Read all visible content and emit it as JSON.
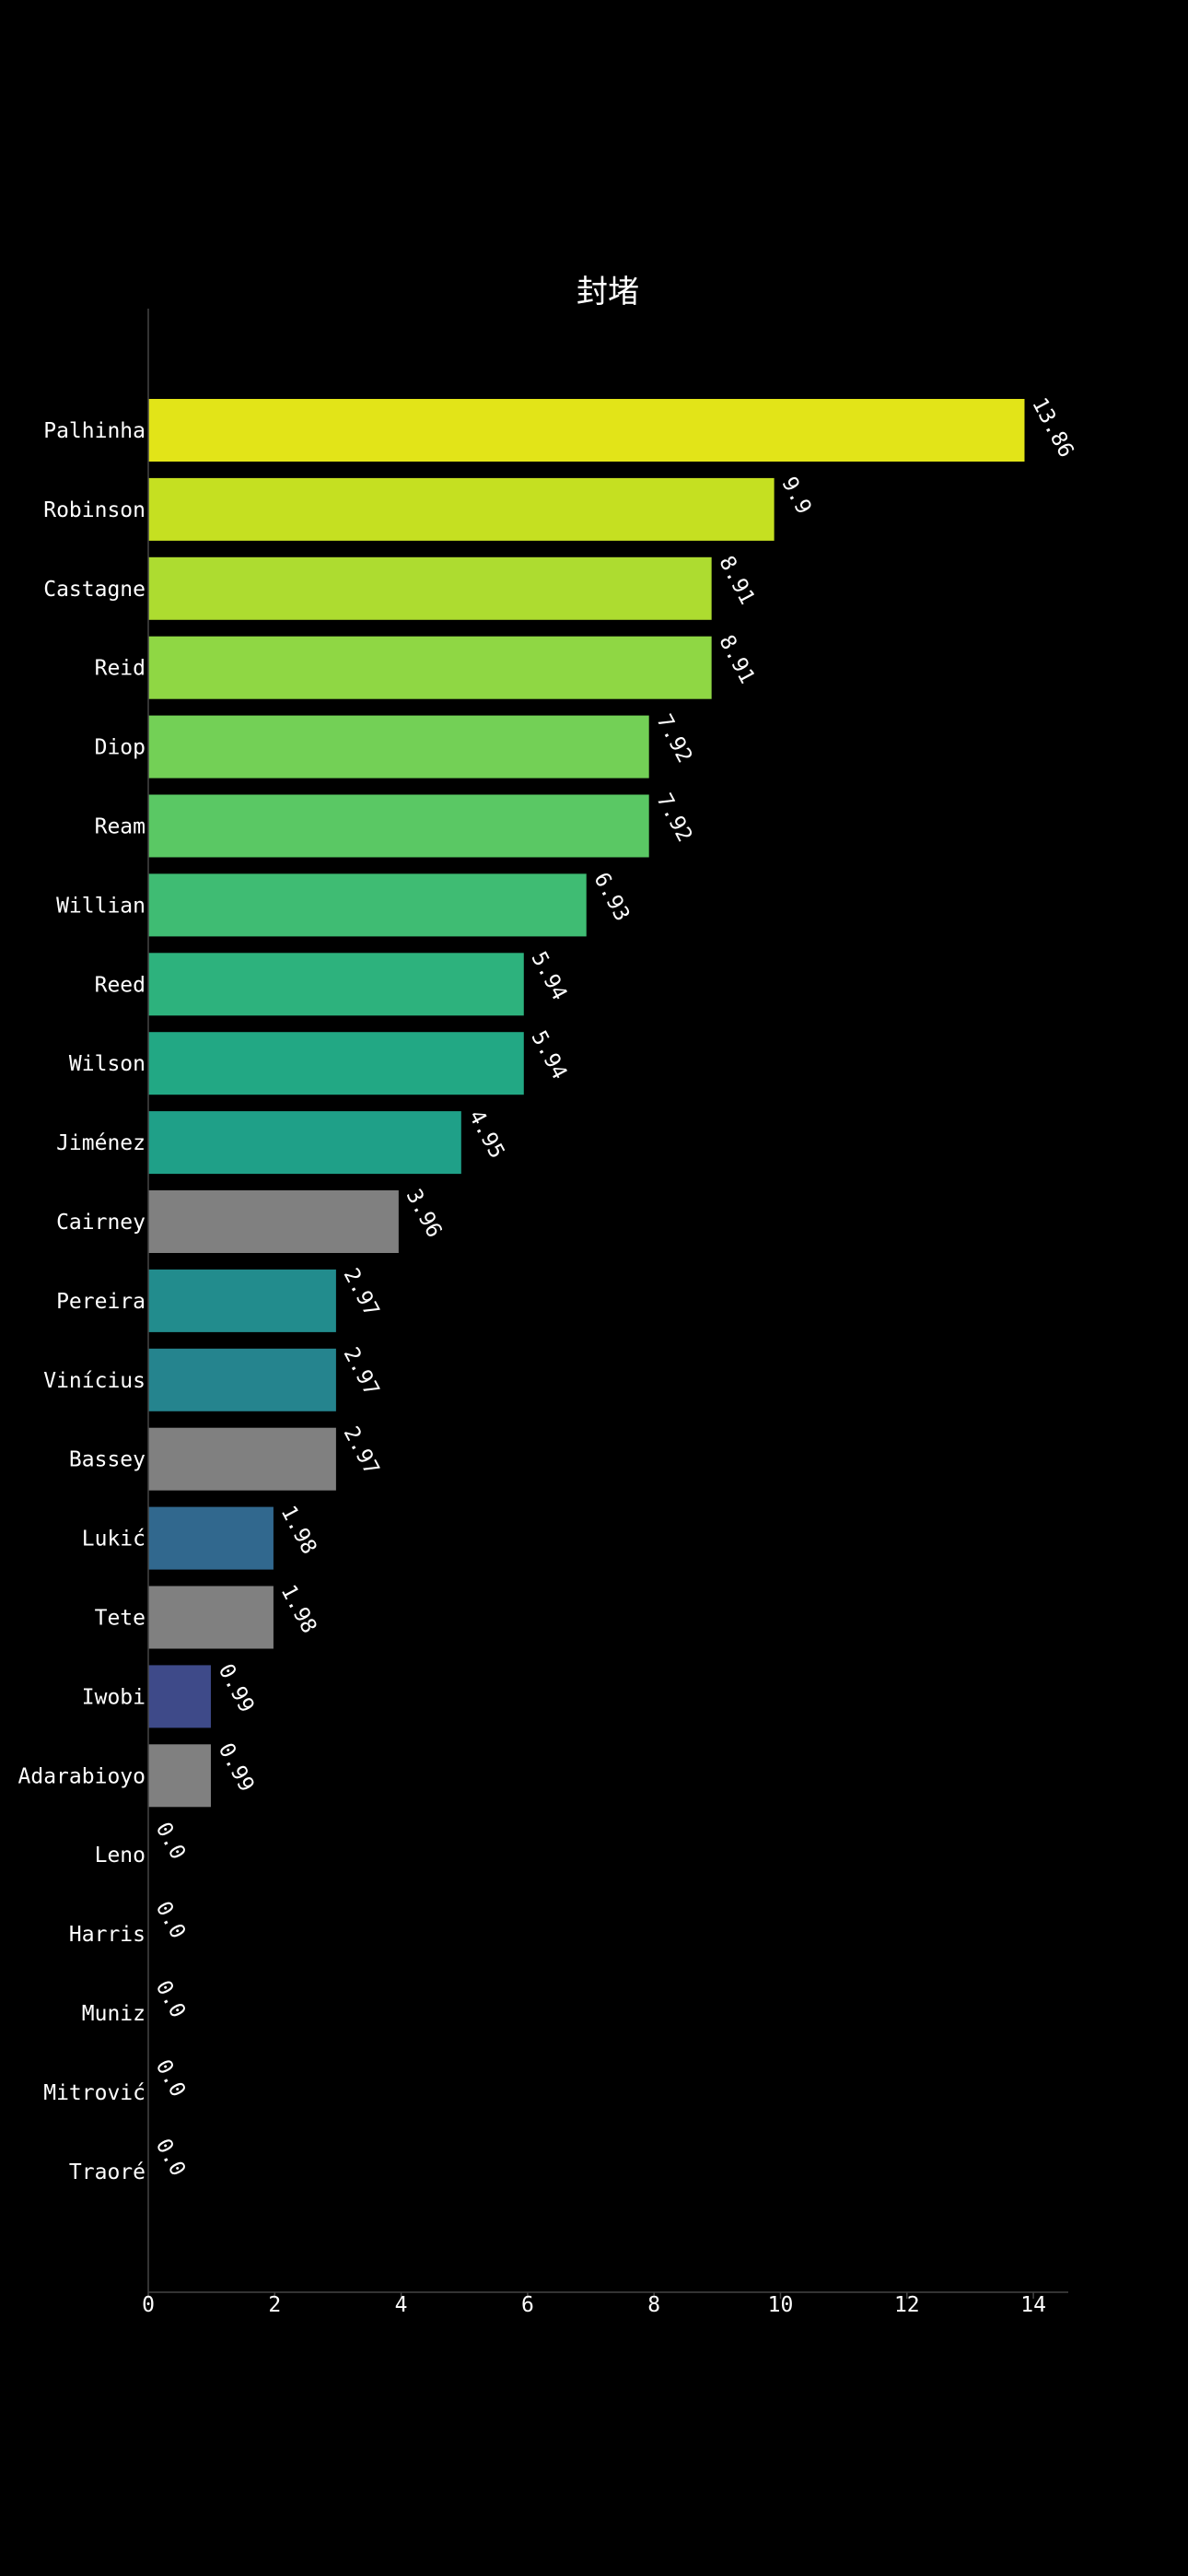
{
  "chart_data": {
    "type": "bar",
    "orientation": "horizontal",
    "title": "封堵",
    "xlabel": "",
    "ylabel": "",
    "xlim": [
      0,
      14.5
    ],
    "xticks": [
      0,
      2,
      4,
      6,
      8,
      10,
      12,
      14
    ],
    "grid": false,
    "categories": [
      "Palhinha",
      "Robinson",
      "Castagne",
      "Reid",
      "Diop",
      "Ream",
      "Willian",
      "Reed",
      "Wilson",
      "Jiménez",
      "Cairney",
      "Pereira",
      "Vinícius",
      "Bassey",
      "Lukić",
      "Tete",
      "Iwobi",
      "Adarabioyo",
      "Leno",
      "Harris",
      "Muniz",
      "Mitrović",
      "Traoré"
    ],
    "values": [
      13.86,
      9.9,
      8.91,
      8.91,
      7.92,
      7.92,
      6.93,
      5.94,
      5.94,
      4.95,
      3.96,
      2.97,
      2.97,
      2.97,
      1.98,
      1.98,
      0.99,
      0.99,
      0.0,
      0.0,
      0.0,
      0.0,
      0.0
    ],
    "value_labels": [
      "13.86",
      "9.9",
      "8.91",
      "8.91",
      "7.92",
      "7.92",
      "6.93",
      "5.94",
      "5.94",
      "4.95",
      "3.96",
      "2.97",
      "2.97",
      "2.97",
      "1.98",
      "1.98",
      "0.99",
      "0.99",
      "0.0",
      "0.0",
      "0.0",
      "0.0",
      "0.0"
    ],
    "colors": [
      "#e2e418",
      "#c5e021",
      "#addc30",
      "#8fd744",
      "#73d056",
      "#5ac864",
      "#3fbc73",
      "#2db27d",
      "#22a884",
      "#1fa088",
      "#808080",
      "#228c8d",
      "#25848e",
      "#808080",
      "#31688e",
      "#808080",
      "#3e4a89",
      "#808080",
      "#808080",
      "#808080",
      "#808080",
      "#808080",
      "#808080"
    ],
    "background": "#000000",
    "text_color": "#ffffff",
    "axis_color": "#444444"
  }
}
